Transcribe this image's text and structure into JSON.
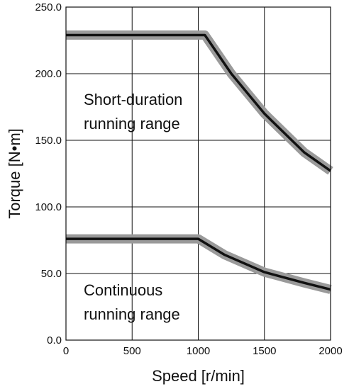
{
  "chart_data": {
    "type": "line",
    "xlabel": "Speed [r/min]",
    "ylabel": "Torque [N•m]",
    "xlim": [
      0,
      2000
    ],
    "ylim": [
      0,
      250
    ],
    "xticks": [
      "0",
      "500",
      "1000",
      "1500",
      "2000"
    ],
    "yticks": [
      "0.0",
      "50.0",
      "100.0",
      "150.0",
      "200.0",
      "250.0"
    ],
    "grid": true,
    "series": [
      {
        "name": "short-duration",
        "color": "#111111",
        "band_color": "#9a9a9a",
        "x": [
          0,
          1050,
          1250,
          1500,
          1800,
          2000
        ],
        "y": [
          229,
          229,
          200,
          170,
          141,
          127
        ]
      },
      {
        "name": "continuous",
        "color": "#111111",
        "band_color": "#9a9a9a",
        "x": [
          0,
          1000,
          1200,
          1500,
          1800,
          2000
        ],
        "y": [
          76,
          76,
          64,
          51,
          43,
          38
        ]
      }
    ],
    "annotations": [
      {
        "lines": [
          "Short-duration",
          "running range"
        ]
      },
      {
        "lines": [
          "Continuous",
          "running range"
        ]
      }
    ]
  }
}
